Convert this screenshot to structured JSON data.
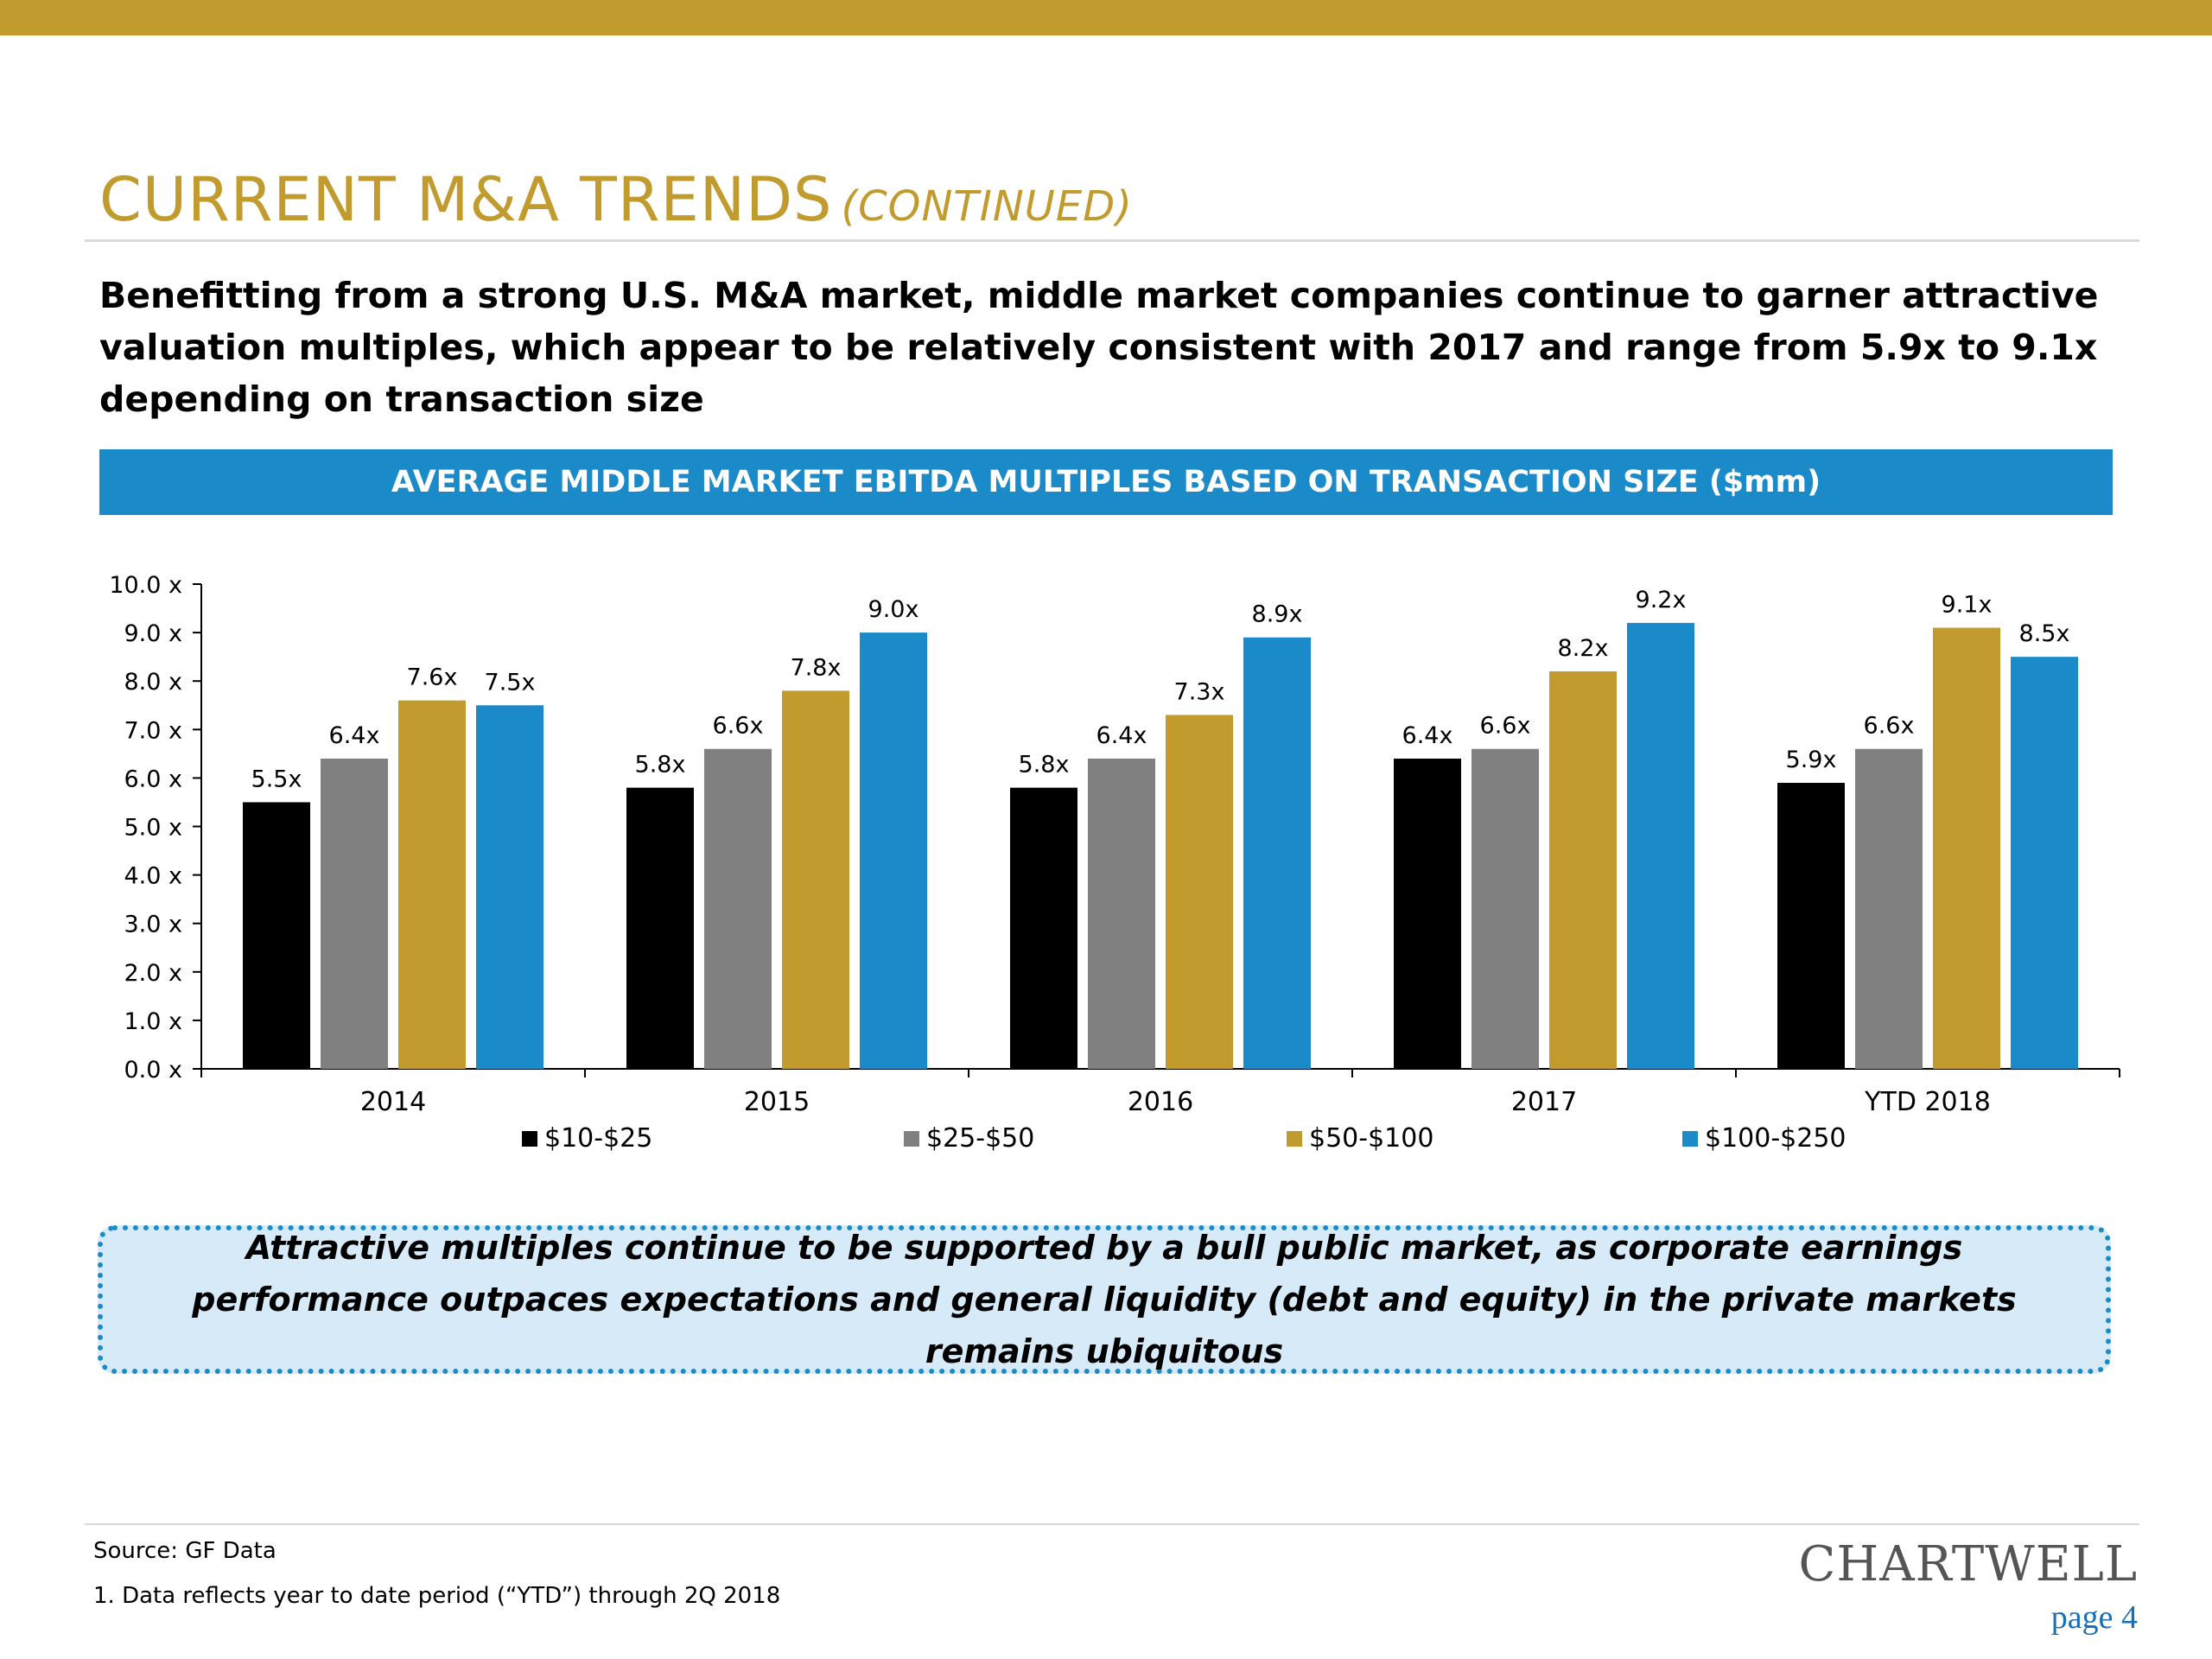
{
  "header": {
    "title": "CURRENT M&A TRENDS",
    "title_suffix": "(CONTINUED)"
  },
  "intro": "Benefitting from a strong U.S. M&A market, middle market companies continue to garner attractive valuation multiples, which appear to be relatively consistent with 2017 and range from 5.9x to 9.1x depending on transaction size",
  "chart_banner": "AVERAGE MIDDLE MARKET EBITDA MULTIPLES BASED ON TRANSACTION SIZE ($mm)",
  "chart_data": {
    "type": "bar",
    "title": "AVERAGE MIDDLE MARKET EBITDA MULTIPLES BASED ON TRANSACTION SIZE ($mm)",
    "categories": [
      "2014",
      "2015",
      "2016",
      "2017",
      "YTD 2018"
    ],
    "series": [
      {
        "name": "$10-$25",
        "color": "#000000",
        "values": [
          5.5,
          5.8,
          5.8,
          6.4,
          5.9
        ],
        "labels": [
          "5.5x",
          "5.8x",
          "5.8x",
          "6.4x",
          "5.9x"
        ]
      },
      {
        "name": "$25-$50",
        "color": "#808080",
        "values": [
          6.4,
          6.6,
          6.4,
          6.6,
          6.6
        ],
        "labels": [
          "6.4x",
          "6.6x",
          "6.4x",
          "6.6x",
          "6.6x"
        ]
      },
      {
        "name": "$50-$100",
        "color": "#C19B2E",
        "values": [
          7.6,
          7.8,
          7.3,
          8.2,
          9.1
        ],
        "labels": [
          "7.6x",
          "7.8x",
          "7.3x",
          "8.2x",
          "9.1x"
        ]
      },
      {
        "name": "$100-$250",
        "color": "#1B8AC9",
        "values": [
          7.5,
          9.0,
          8.9,
          9.2,
          8.5
        ],
        "labels": [
          "7.5x",
          "9.0x",
          "8.9x",
          "9.2x",
          "8.5x"
        ]
      }
    ],
    "ylim": [
      0,
      10
    ],
    "yticks": [
      "0.0 x",
      "1.0 x",
      "2.0 x",
      "3.0 x",
      "4.0 x",
      "5.0 x",
      "6.0 x",
      "7.0 x",
      "8.0 x",
      "9.0 x",
      "10.0 x"
    ],
    "grid": false,
    "legend_position": "bottom"
  },
  "callout": "Attractive multiples continue to be supported by a bull public market, as corporate earnings performance outpaces expectations and general liquidity (debt and equity) in the private markets remains ubiquitous",
  "footer": {
    "source": "Source: GF Data",
    "footnote": "1. Data reflects year to date period (“YTD”) through 2Q 2018",
    "logo": "CHARTWELL",
    "page": "page 4"
  }
}
